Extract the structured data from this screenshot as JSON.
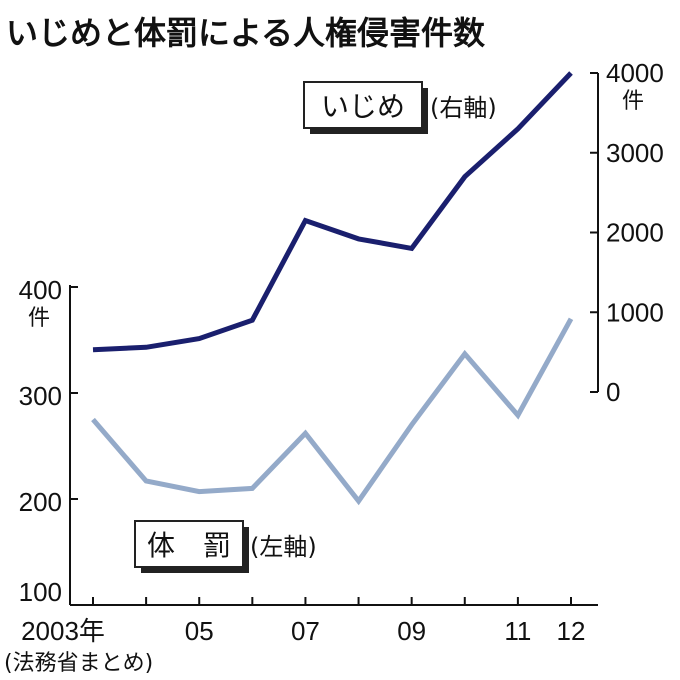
{
  "chart_data": {
    "type": "line",
    "title": "いじめと体罰による人権侵害件数",
    "source": "(法務省まとめ)",
    "categories": [
      "2003",
      "2004",
      "2005",
      "2006",
      "2007",
      "2008",
      "2009",
      "2010",
      "2011",
      "2012"
    ],
    "x_tick_labels": [
      "2003年",
      "",
      "05",
      "",
      "07",
      "",
      "09",
      "",
      "11",
      "12"
    ],
    "left_axis": {
      "range": [
        100,
        400
      ],
      "ticks": [
        100,
        200,
        300,
        400
      ],
      "tick_labels": [
        "100",
        "200",
        "300",
        "400"
      ],
      "unit": "件"
    },
    "right_axis": {
      "range": [
        0,
        4000
      ],
      "ticks": [
        0,
        1000,
        2000,
        3000,
        4000
      ],
      "tick_labels": [
        "0",
        "1000",
        "2000",
        "3000",
        "4000"
      ],
      "unit": "件"
    },
    "series": [
      {
        "name": "いじめ",
        "axis_note": "(右軸)",
        "axis": "right",
        "color": "#1a1f6e",
        "values": [
          530,
          560,
          670,
          900,
          2150,
          1920,
          1800,
          2700,
          3300,
          4000
        ]
      },
      {
        "name": "体　罰",
        "axis_note": "(左軸)",
        "axis": "left",
        "color": "#94aac9",
        "values": [
          275,
          217,
          207,
          210,
          262,
          198,
          270,
          337,
          279,
          370
        ]
      }
    ],
    "grid": false
  }
}
